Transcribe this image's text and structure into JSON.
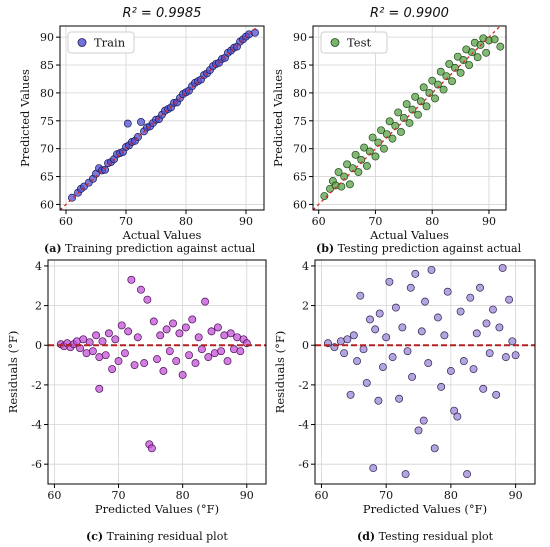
{
  "chart_data": [
    {
      "id": "a",
      "type": "scatter",
      "title": "R² = 0.9985",
      "xlabel": "Actual Values",
      "ylabel": "Predicted Values",
      "xlim": [
        59,
        93
      ],
      "ylim": [
        59,
        92
      ],
      "xticks": [
        60,
        70,
        80,
        90
      ],
      "yticks": [
        60,
        65,
        70,
        75,
        80,
        85,
        90
      ],
      "grid": true,
      "legend": "top-left",
      "reference_line": {
        "from": [
          59,
          59
        ],
        "to": [
          92,
          92
        ],
        "style": "dashed",
        "color": "#d62728"
      },
      "series": [
        {
          "name": "Train",
          "color": "#4f4fcf",
          "edge": "#1a1a5a",
          "points": [
            [
              61,
              61.2
            ],
            [
              62,
              62.1
            ],
            [
              62.5,
              62.8
            ],
            [
              63,
              63.2
            ],
            [
              63.8,
              63.9
            ],
            [
              64.5,
              64.6
            ],
            [
              65,
              65.5
            ],
            [
              65.5,
              66.5
            ],
            [
              66,
              66.1
            ],
            [
              66.5,
              66.2
            ],
            [
              67,
              67.4
            ],
            [
              67.5,
              67.6
            ],
            [
              68,
              68.1
            ],
            [
              68.5,
              69.0
            ],
            [
              69,
              69.2
            ],
            [
              69.5,
              69.4
            ],
            [
              70,
              70.3
            ],
            [
              70.3,
              74.5
            ],
            [
              70.5,
              70.6
            ],
            [
              71,
              71.2
            ],
            [
              71.5,
              71.4
            ],
            [
              72,
              72.1
            ],
            [
              72.5,
              74.8
            ],
            [
              73,
              73.1
            ],
            [
              73.5,
              73.8
            ],
            [
              74,
              74.0
            ],
            [
              74.5,
              74.6
            ],
            [
              75,
              75.2
            ],
            [
              75.5,
              75.3
            ],
            [
              76,
              76.1
            ],
            [
              76.5,
              76.8
            ],
            [
              77,
              77.1
            ],
            [
              77.5,
              77.4
            ],
            [
              78,
              78.2
            ],
            [
              78.5,
              78.3
            ],
            [
              79,
              79.1
            ],
            [
              79.5,
              79.8
            ],
            [
              80,
              80.1
            ],
            [
              80.5,
              80.4
            ],
            [
              81,
              81.2
            ],
            [
              81.5,
              81.8
            ],
            [
              82,
              82.1
            ],
            [
              82.5,
              82.4
            ],
            [
              83,
              83.2
            ],
            [
              83.5,
              83.5
            ],
            [
              84,
              84.1
            ],
            [
              84.5,
              84.8
            ],
            [
              85,
              85.2
            ],
            [
              85.5,
              85.4
            ],
            [
              86,
              86.1
            ],
            [
              86.5,
              86.3
            ],
            [
              87,
              87.2
            ],
            [
              87.5,
              87.6
            ],
            [
              88,
              88.1
            ],
            [
              88.5,
              88.3
            ],
            [
              89,
              89.2
            ],
            [
              89.5,
              89.6
            ],
            [
              90,
              90.1
            ],
            [
              90.5,
              90.5
            ],
            [
              91.5,
              90.8
            ]
          ]
        }
      ],
      "caption_label": "(a)",
      "caption_text": " Training prediction against actual"
    },
    {
      "id": "b",
      "type": "scatter",
      "title": "R² = 0.9900",
      "xlabel": "Actual Values",
      "ylabel": "Predicted Values",
      "xlim": [
        59,
        93
      ],
      "ylim": [
        59,
        92
      ],
      "xticks": [
        60,
        70,
        80,
        90
      ],
      "yticks": [
        60,
        65,
        70,
        75,
        80,
        85,
        90
      ],
      "grid": true,
      "legend": "top-left",
      "reference_line": {
        "from": [
          59,
          59
        ],
        "to": [
          92,
          92
        ],
        "style": "dashed",
        "color": "#d62728"
      },
      "series": [
        {
          "name": "Test",
          "color": "#5aa04a",
          "edge": "#1d4a14",
          "points": [
            [
              61,
              61.5
            ],
            [
              62,
              62.8
            ],
            [
              62.5,
              64.2
            ],
            [
              63,
              63.4
            ],
            [
              63.5,
              65.8
            ],
            [
              64,
              63.2
            ],
            [
              64.5,
              65.0
            ],
            [
              65,
              67.2
            ],
            [
              65.5,
              63.6
            ],
            [
              66,
              66.5
            ],
            [
              66.5,
              68.9
            ],
            [
              67,
              65.8
            ],
            [
              67.5,
              68.0
            ],
            [
              68,
              70.2
            ],
            [
              68.5,
              66.9
            ],
            [
              69,
              69.5
            ],
            [
              69.5,
              72.0
            ],
            [
              70,
              68.6
            ],
            [
              70.5,
              71.1
            ],
            [
              71,
              73.3
            ],
            [
              71.5,
              70.0
            ],
            [
              72,
              72.6
            ],
            [
              72.5,
              74.9
            ],
            [
              73,
              71.8
            ],
            [
              73.5,
              74.1
            ],
            [
              74,
              76.5
            ],
            [
              74.5,
              73.0
            ],
            [
              75,
              75.5
            ],
            [
              75.5,
              78.0
            ],
            [
              76,
              74.6
            ],
            [
              76.5,
              77.0
            ],
            [
              77,
              79.3
            ],
            [
              77.5,
              76.1
            ],
            [
              78,
              78.5
            ],
            [
              78.5,
              81.0
            ],
            [
              79,
              77.6
            ],
            [
              79.5,
              80.0
            ],
            [
              80,
              82.2
            ],
            [
              80.5,
              79.0
            ],
            [
              81,
              81.5
            ],
            [
              81.5,
              83.8
            ],
            [
              82,
              80.6
            ],
            [
              82.5,
              83.0
            ],
            [
              83,
              85.2
            ],
            [
              83.5,
              82.1
            ],
            [
              84,
              84.5
            ],
            [
              84.5,
              86.5
            ],
            [
              85,
              83.6
            ],
            [
              85.5,
              85.9
            ],
            [
              86,
              87.8
            ],
            [
              86.5,
              85.0
            ],
            [
              87,
              87.3
            ],
            [
              87.5,
              89.0
            ],
            [
              88,
              86.4
            ],
            [
              88.5,
              88.6
            ],
            [
              89,
              89.8
            ],
            [
              89.5,
              87.2
            ],
            [
              90,
              89.4
            ],
            [
              91,
              89.6
            ],
            [
              92,
              88.3
            ]
          ]
        }
      ],
      "caption_label": "(b)",
      "caption_text": " Testing prediction against actual"
    },
    {
      "id": "c",
      "type": "scatter",
      "title": "",
      "xlabel": "Predicted Values (°F)",
      "ylabel": "Residuals (°F)",
      "xlim": [
        59,
        93
      ],
      "ylim": [
        -7,
        4.3
      ],
      "xticks": [
        60,
        70,
        80,
        90
      ],
      "yticks": [
        -6,
        -4,
        -2,
        0,
        2,
        4
      ],
      "grid": true,
      "reference_line": {
        "from": [
          59,
          0
        ],
        "to": [
          93,
          0
        ],
        "style": "dashed",
        "color": "#b22222"
      },
      "series": [
        {
          "name": "",
          "color": "#c451d8",
          "edge": "#4a0f55",
          "points": [
            [
              61,
              0.05
            ],
            [
              61.5,
              -0.05
            ],
            [
              62,
              0.1
            ],
            [
              62.5,
              -0.1
            ],
            [
              63,
              0.05
            ],
            [
              63.5,
              0.2
            ],
            [
              64,
              -0.15
            ],
            [
              64.5,
              0.3
            ],
            [
              65,
              -0.4
            ],
            [
              65.5,
              0.15
            ],
            [
              66,
              -0.3
            ],
            [
              66.5,
              0.5
            ],
            [
              67,
              -0.6
            ],
            [
              67,
              -2.2
            ],
            [
              67.5,
              0.2
            ],
            [
              68,
              -0.5
            ],
            [
              68.5,
              0.6
            ],
            [
              69,
              -1.2
            ],
            [
              69.5,
              0.3
            ],
            [
              70,
              -0.8
            ],
            [
              70.5,
              1.0
            ],
            [
              71,
              -0.4
            ],
            [
              71.5,
              0.7
            ],
            [
              72,
              3.3
            ],
            [
              72.5,
              -1.0
            ],
            [
              73,
              0.4
            ],
            [
              73.5,
              2.8
            ],
            [
              74,
              -0.9
            ],
            [
              74.5,
              2.3
            ],
            [
              74.8,
              -5.0
            ],
            [
              75.2,
              -5.2
            ],
            [
              75.5,
              1.2
            ],
            [
              76,
              -0.7
            ],
            [
              76.5,
              0.5
            ],
            [
              77,
              -1.3
            ],
            [
              77.5,
              0.8
            ],
            [
              78,
              -0.3
            ],
            [
              78.5,
              1.1
            ],
            [
              79,
              -0.8
            ],
            [
              79.5,
              0.6
            ],
            [
              80,
              -1.5
            ],
            [
              80.5,
              0.9
            ],
            [
              81,
              -0.5
            ],
            [
              81.5,
              1.3
            ],
            [
              82,
              -0.9
            ],
            [
              82.5,
              0.4
            ],
            [
              83,
              -0.2
            ],
            [
              83.5,
              2.2
            ],
            [
              84,
              -0.6
            ],
            [
              84.5,
              0.7
            ],
            [
              85,
              -0.4
            ],
            [
              85.5,
              0.9
            ],
            [
              86,
              -0.3
            ],
            [
              86.5,
              0.5
            ],
            [
              87,
              -0.8
            ],
            [
              87.5,
              0.6
            ],
            [
              88,
              -0.2
            ],
            [
              88.5,
              0.4
            ],
            [
              89,
              -0.3
            ],
            [
              89.5,
              0.3
            ],
            [
              90,
              0.1
            ]
          ]
        }
      ],
      "caption_label": "(c)",
      "caption_text": " Training residual plot"
    },
    {
      "id": "d",
      "type": "scatter",
      "title": "",
      "xlabel": "Predicted Values (°F)",
      "ylabel": "Residuals (°F)",
      "xlim": [
        59,
        93
      ],
      "ylim": [
        -7,
        4.3
      ],
      "xticks": [
        60,
        70,
        80,
        90
      ],
      "yticks": [
        -6,
        -4,
        -2,
        0,
        2,
        4
      ],
      "grid": true,
      "reference_line": {
        "from": [
          59,
          0
        ],
        "to": [
          93,
          0
        ],
        "style": "dashed",
        "color": "#b22222"
      },
      "series": [
        {
          "name": "",
          "color": "#9b86d6",
          "edge": "#2e2350",
          "points": [
            [
              61,
              0.1
            ],
            [
              62,
              -0.1
            ],
            [
              63,
              0.2
            ],
            [
              63.5,
              -0.4
            ],
            [
              64,
              0.3
            ],
            [
              64.5,
              -2.5
            ],
            [
              65,
              0.5
            ],
            [
              65.5,
              -0.8
            ],
            [
              66,
              2.5
            ],
            [
              66.5,
              -0.2
            ],
            [
              67,
              -1.9
            ],
            [
              67.5,
              1.3
            ],
            [
              68,
              -6.2
            ],
            [
              68.3,
              0.8
            ],
            [
              68.8,
              -2.8
            ],
            [
              69,
              1.6
            ],
            [
              69.5,
              -1.1
            ],
            [
              70,
              0.4
            ],
            [
              70.5,
              3.2
            ],
            [
              71,
              -0.6
            ],
            [
              71.5,
              1.9
            ],
            [
              72,
              -2.7
            ],
            [
              72.5,
              0.9
            ],
            [
              73,
              -6.5
            ],
            [
              73.3,
              -0.3
            ],
            [
              73.8,
              2.9
            ],
            [
              74,
              -1.6
            ],
            [
              74.5,
              3.6
            ],
            [
              75,
              -4.3
            ],
            [
              75.5,
              0.7
            ],
            [
              75.8,
              -3.8
            ],
            [
              76,
              2.2
            ],
            [
              76.5,
              -0.9
            ],
            [
              77,
              3.8
            ],
            [
              77.5,
              -5.2
            ],
            [
              78,
              1.4
            ],
            [
              78.5,
              -2.1
            ],
            [
              79,
              0.5
            ],
            [
              79.5,
              2.7
            ],
            [
              80,
              -1.3
            ],
            [
              80.5,
              -3.3
            ],
            [
              81,
              -3.6
            ],
            [
              81.5,
              1.7
            ],
            [
              82,
              -0.8
            ],
            [
              82.5,
              -6.5
            ],
            [
              83,
              2.4
            ],
            [
              83.5,
              -1.2
            ],
            [
              84,
              0.6
            ],
            [
              84.5,
              2.9
            ],
            [
              85,
              -2.2
            ],
            [
              85.5,
              1.1
            ],
            [
              86,
              -0.4
            ],
            [
              86.5,
              1.8
            ],
            [
              87,
              -2.5
            ],
            [
              87.5,
              0.9
            ],
            [
              88,
              3.9
            ],
            [
              88.5,
              -0.6
            ],
            [
              89,
              2.3
            ],
            [
              89.5,
              0.2
            ],
            [
              90,
              -0.5
            ]
          ]
        }
      ],
      "caption_label": "(d)",
      "caption_text": " Testing residual plot"
    }
  ]
}
